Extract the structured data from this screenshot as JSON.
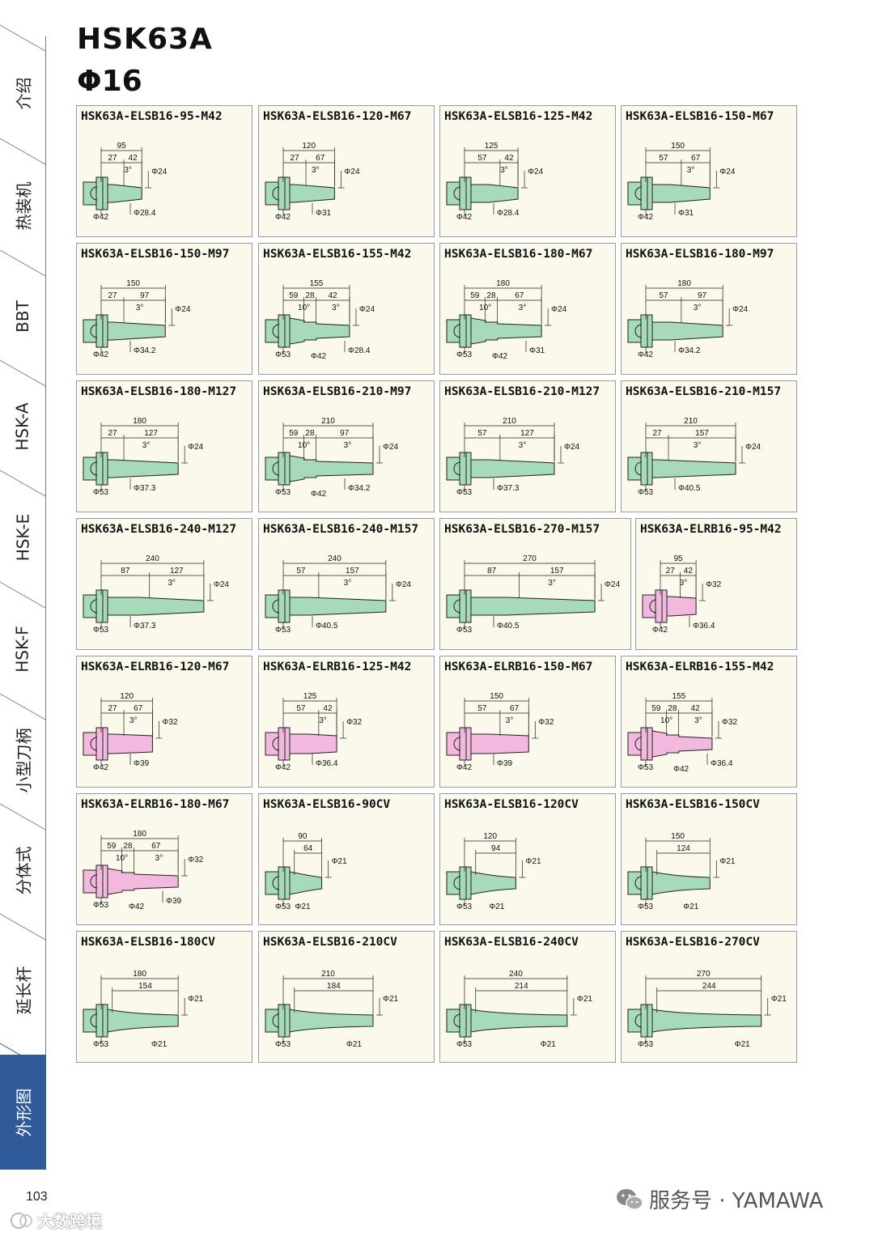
{
  "page": {
    "title": "HSK63A",
    "subtitle": "Φ16",
    "page_number": "103",
    "brand": "服务号 · YAMAWA",
    "watermark": "大数跨境"
  },
  "sidebar": {
    "tabs": [
      {
        "label": "介绍",
        "active": false
      },
      {
        "label": "热装机",
        "active": false
      },
      {
        "label": "BBT",
        "active": false
      },
      {
        "label": "HSK-A",
        "active": false
      },
      {
        "label": "HSK-E",
        "active": false
      },
      {
        "label": "HSK-F",
        "active": false
      },
      {
        "label": "小型刀柄",
        "active": false
      },
      {
        "label": "分体式",
        "active": false
      },
      {
        "label": "延长杆",
        "active": false
      },
      {
        "label": "外形图",
        "active": true
      }
    ]
  },
  "colors": {
    "green": "#a7dab8",
    "pink": "#f2b8dd",
    "active_tab": "#2f5b9a",
    "card_bg": "#fbf8ec"
  },
  "cards": [
    {
      "title": "HSK63A-ELSB16-95-M42",
      "color": "green",
      "total": "95",
      "seg": [
        "27",
        "42"
      ],
      "angle": "3°",
      "d_tip": "Φ24",
      "d_base": "Φ28.4",
      "d_flange": "Φ42"
    },
    {
      "title": "HSK63A-ELSB16-120-M67",
      "color": "green",
      "total": "120",
      "seg": [
        "27",
        "67"
      ],
      "angle": "3°",
      "d_tip": "Φ24",
      "d_base": "Φ31",
      "d_flange": "Φ42"
    },
    {
      "title": "HSK63A-ELSB16-125-M42",
      "color": "green",
      "total": "125",
      "seg": [
        "57",
        "42"
      ],
      "angle": "3°",
      "d_tip": "Φ24",
      "d_base": "Φ28.4",
      "d_flange": "Φ42"
    },
    {
      "title": "HSK63A-ELSB16-150-M67",
      "color": "green",
      "total": "150",
      "seg": [
        "57",
        "67"
      ],
      "angle": "3°",
      "d_tip": "Φ24",
      "d_base": "Φ31",
      "d_flange": "Φ42"
    },
    {
      "title": "HSK63A-ELSB16-150-M97",
      "color": "green",
      "total": "150",
      "seg": [
        "27",
        "97"
      ],
      "angle": "3°",
      "d_tip": "Φ24",
      "d_base": "Φ34.2",
      "d_flange": "Φ42"
    },
    {
      "title": "HSK63A-ELSB16-155-M42",
      "color": "green",
      "total": "155",
      "seg": [
        "59",
        "28",
        "42"
      ],
      "angle": "3°",
      "angle2": "10°",
      "d_tip": "Φ24",
      "d_base": "Φ28.4",
      "d_flange": "Φ53",
      "d_mid": "Φ42"
    },
    {
      "title": "HSK63A-ELSB16-180-M67",
      "color": "green",
      "total": "180",
      "seg": [
        "59",
        "28",
        "67"
      ],
      "angle": "3°",
      "angle2": "10°",
      "d_tip": "Φ24",
      "d_base": "Φ31",
      "d_flange": "Φ53",
      "d_mid": "Φ42"
    },
    {
      "title": "HSK63A-ELSB16-180-M97",
      "color": "green",
      "total": "180",
      "seg": [
        "57",
        "97"
      ],
      "angle": "3°",
      "d_tip": "Φ24",
      "d_base": "Φ34.2",
      "d_flange": "Φ42"
    },
    {
      "title": "HSK63A-ELSB16-180-M127",
      "color": "green",
      "total": "180",
      "seg": [
        "27",
        "127"
      ],
      "angle": "3°",
      "d_tip": "Φ24",
      "d_base": "Φ37.3",
      "d_flange": "Φ53"
    },
    {
      "title": "HSK63A-ELSB16-210-M97",
      "color": "green",
      "total": "210",
      "seg": [
        "59",
        "28",
        "97"
      ],
      "angle": "3°",
      "angle2": "10°",
      "d_tip": "Φ24",
      "d_base": "Φ34.2",
      "d_flange": "Φ53",
      "d_mid": "Φ42"
    },
    {
      "title": "HSK63A-ELSB16-210-M127",
      "color": "green",
      "total": "210",
      "seg": [
        "57",
        "127"
      ],
      "angle": "3°",
      "d_tip": "Φ24",
      "d_base": "Φ37.3",
      "d_flange": "Φ53"
    },
    {
      "title": "HSK63A-ELSB16-210-M157",
      "color": "green",
      "total": "210",
      "seg": [
        "27",
        "157"
      ],
      "angle": "3°",
      "d_tip": "Φ24",
      "d_base": "Φ40.5",
      "d_flange": "Φ53"
    },
    {
      "title": "HSK63A-ELSB16-240-M127",
      "color": "green",
      "total": "240",
      "seg": [
        "87",
        "127"
      ],
      "angle": "3°",
      "d_tip": "Φ24",
      "d_base": "Φ37.3",
      "d_flange": "Φ53"
    },
    {
      "title": "HSK63A-ELSB16-240-M157",
      "color": "green",
      "total": "240",
      "seg": [
        "57",
        "157"
      ],
      "angle": "3°",
      "d_tip": "Φ24",
      "d_base": "Φ40.5",
      "d_flange": "Φ53"
    },
    {
      "title": "HSK63A-ELSB16-270-M157",
      "color": "green",
      "total": "270",
      "seg": [
        "87",
        "157"
      ],
      "angle": "3°",
      "d_tip": "Φ24",
      "d_base": "Φ40.5",
      "d_flange": "Φ53"
    },
    {
      "title": "HSK63A-ELRB16-95-M42",
      "color": "pink",
      "total": "95",
      "seg": [
        "27",
        "42"
      ],
      "angle": "3°",
      "d_tip": "Φ32",
      "d_base": "Φ36.4",
      "d_flange": "Φ42"
    },
    {
      "title": "HSK63A-ELRB16-120-M67",
      "color": "pink",
      "total": "120",
      "seg": [
        "27",
        "67"
      ],
      "angle": "3°",
      "d_tip": "Φ32",
      "d_base": "Φ39",
      "d_flange": "Φ42"
    },
    {
      "title": "HSK63A-ELRB16-125-M42",
      "color": "pink",
      "total": "125",
      "seg": [
        "57",
        "42"
      ],
      "angle": "3°",
      "d_tip": "Φ32",
      "d_base": "Φ36.4",
      "d_flange": "Φ42"
    },
    {
      "title": "HSK63A-ELRB16-150-M67",
      "color": "pink",
      "total": "150",
      "seg": [
        "57",
        "67"
      ],
      "angle": "3°",
      "d_tip": "Φ32",
      "d_base": "Φ39",
      "d_flange": "Φ42"
    },
    {
      "title": "HSK63A-ELRB16-155-M42",
      "color": "pink",
      "total": "155",
      "seg": [
        "59",
        "28",
        "42"
      ],
      "angle": "3°",
      "angle2": "10°",
      "d_tip": "Φ32",
      "d_base": "Φ36.4",
      "d_flange": "Φ53",
      "d_mid": "Φ42"
    },
    {
      "title": "HSK63A-ELRB16-180-M67",
      "color": "pink",
      "total": "180",
      "seg": [
        "59",
        "28",
        "67"
      ],
      "angle": "3°",
      "angle2": "10°",
      "d_tip": "Φ32",
      "d_base": "Φ39",
      "d_flange": "Φ53",
      "d_mid": "Φ42"
    },
    {
      "title": "HSK63A-ELSB16-90CV",
      "color": "green",
      "cv": true,
      "total": "90",
      "seg": [
        "64"
      ],
      "d_tip": "Φ21",
      "d_flange": "Φ53"
    },
    {
      "title": "HSK63A-ELSB16-120CV",
      "color": "green",
      "cv": true,
      "total": "120",
      "seg": [
        "94"
      ],
      "d_tip": "Φ21",
      "d_flange": "Φ53"
    },
    {
      "title": "HSK63A-ELSB16-150CV",
      "color": "green",
      "cv": true,
      "total": "150",
      "seg": [
        "124"
      ],
      "d_tip": "Φ21",
      "d_flange": "Φ53"
    },
    {
      "title": "HSK63A-ELSB16-180CV",
      "color": "green",
      "cv": true,
      "total": "180",
      "seg": [
        "154"
      ],
      "d_tip": "Φ21",
      "d_flange": "Φ53"
    },
    {
      "title": "HSK63A-ELSB16-210CV",
      "color": "green",
      "cv": true,
      "total": "210",
      "seg": [
        "184"
      ],
      "d_tip": "Φ21",
      "d_flange": "Φ53"
    },
    {
      "title": "HSK63A-ELSB16-240CV",
      "color": "green",
      "cv": true,
      "total": "240",
      "seg": [
        "214"
      ],
      "d_tip": "Φ21",
      "d_flange": "Φ53"
    },
    {
      "title": "HSK63A-ELSB16-270CV",
      "color": "green",
      "cv": true,
      "total": "270",
      "seg": [
        "244"
      ],
      "d_tip": "Φ21",
      "d_flange": "Φ53"
    }
  ]
}
